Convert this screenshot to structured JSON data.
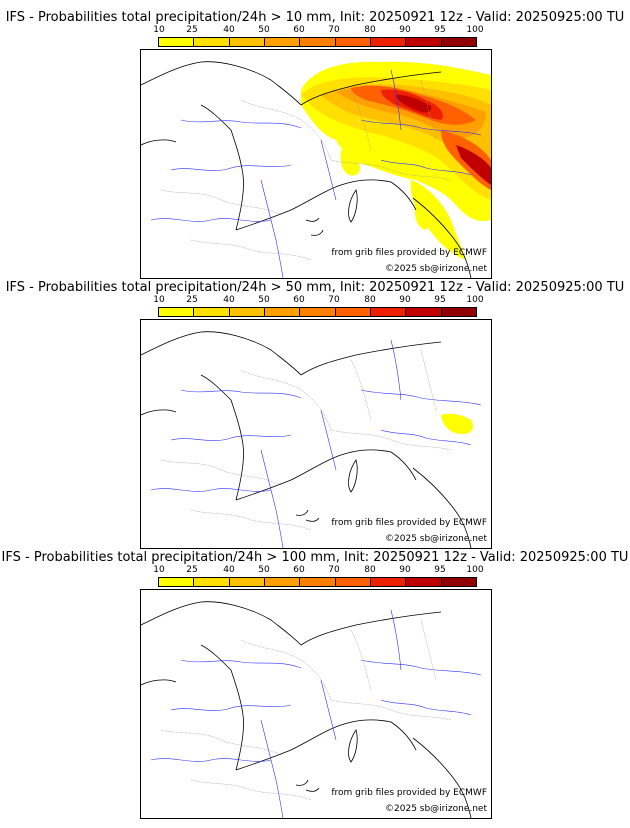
{
  "colors": {
    "scale": [
      "#ffff00",
      "#ffe000",
      "#ffc000",
      "#ffa000",
      "#ff8000",
      "#ff6000",
      "#ee2000",
      "#c00000",
      "#900000",
      "#600000"
    ]
  },
  "scale_ticks": [
    "10",
    "25",
    "40",
    "50",
    "60",
    "70",
    "80",
    "90",
    "95",
    "100"
  ],
  "credits": {
    "source": "from grib files provided by ECMWF",
    "copyright": "©2025 sb@irizone.net"
  },
  "panels": [
    {
      "title": "IFS - Probabilities total precipitation/24h > 10 mm, Init: 20250921 12z - Valid: 20250925:00 TU",
      "threshold": "10 mm"
    },
    {
      "title": "IFS - Probabilities total precipitation/24h > 50 mm, Init: 20250921 12z - Valid: 20250925:00 TU",
      "threshold": "50 mm"
    },
    {
      "title": "IFS - Probabilities total precipitation/24h > 100 mm, Init: 20250921 12z - Valid: 20250925:00 TU",
      "threshold": "100 mm"
    }
  ]
}
